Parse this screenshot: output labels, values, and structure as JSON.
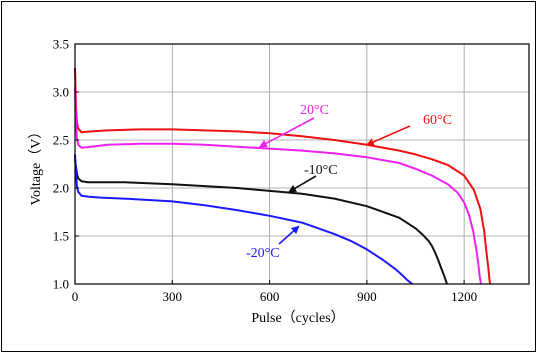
{
  "chart_data": {
    "type": "line",
    "xlabel": "Pulse（cycles）",
    "ylabel": "Voltage（V）",
    "xlim": [
      0,
      1400
    ],
    "ylim": [
      1.0,
      3.5
    ],
    "xticks": [
      0,
      300,
      600,
      900,
      1200
    ],
    "yticks": [
      1.0,
      1.5,
      2.0,
      2.5,
      3.0,
      3.5
    ],
    "xtick_labels": [
      "0",
      "300",
      "600",
      "900",
      "1200"
    ],
    "ytick_labels": [
      "1.0",
      "1.5",
      "2.0",
      "2.5",
      "3.0",
      "3.5"
    ],
    "grid": true,
    "legend": "none",
    "series": [
      {
        "name": "60°C",
        "color": "#ee1111",
        "x": [
          0,
          3,
          6,
          10,
          20,
          50,
          100,
          200,
          300,
          400,
          500,
          600,
          700,
          800,
          900,
          1000,
          1050,
          1100,
          1150,
          1200,
          1230,
          1250,
          1262,
          1270,
          1275,
          1278,
          1280
        ],
        "y": [
          3.25,
          2.85,
          2.68,
          2.62,
          2.58,
          2.59,
          2.6,
          2.61,
          2.61,
          2.6,
          2.59,
          2.57,
          2.54,
          2.5,
          2.45,
          2.39,
          2.35,
          2.3,
          2.24,
          2.13,
          1.98,
          1.78,
          1.55,
          1.3,
          1.15,
          1.05,
          1.0
        ]
      },
      {
        "name": "20°C",
        "color": "#ee22ee",
        "x": [
          0,
          3,
          6,
          10,
          20,
          50,
          100,
          200,
          300,
          400,
          500,
          600,
          700,
          800,
          900,
          1000,
          1050,
          1100,
          1150,
          1180,
          1200,
          1215,
          1228,
          1238,
          1244,
          1248,
          1252
        ],
        "y": [
          3.05,
          2.68,
          2.52,
          2.45,
          2.42,
          2.43,
          2.45,
          2.46,
          2.46,
          2.45,
          2.43,
          2.41,
          2.39,
          2.36,
          2.32,
          2.26,
          2.2,
          2.13,
          2.04,
          1.95,
          1.85,
          1.72,
          1.55,
          1.35,
          1.2,
          1.08,
          1.0
        ]
      },
      {
        "name": "-10°C",
        "color": "#111111",
        "x": [
          0,
          3,
          6,
          10,
          20,
          40,
          80,
          150,
          300,
          400,
          500,
          600,
          700,
          800,
          900,
          1000,
          1050,
          1070,
          1090,
          1100,
          1110,
          1120,
          1130,
          1140,
          1147
        ],
        "y": [
          2.3,
          2.22,
          2.15,
          2.1,
          2.07,
          2.06,
          2.06,
          2.06,
          2.04,
          2.02,
          2.0,
          1.97,
          1.94,
          1.89,
          1.81,
          1.69,
          1.58,
          1.52,
          1.45,
          1.4,
          1.33,
          1.25,
          1.16,
          1.07,
          1.0
        ]
      },
      {
        "name": "-20°C",
        "color": "#1a1aff",
        "x": [
          0,
          3,
          6,
          10,
          20,
          40,
          80,
          150,
          300,
          400,
          500,
          600,
          700,
          800,
          850,
          900,
          950,
          990,
          1010,
          1025,
          1040
        ],
        "y": [
          2.35,
          2.15,
          2.02,
          1.96,
          1.92,
          1.91,
          1.9,
          1.89,
          1.86,
          1.82,
          1.77,
          1.71,
          1.64,
          1.52,
          1.45,
          1.36,
          1.25,
          1.15,
          1.09,
          1.04,
          1.0
        ]
      }
    ],
    "annotations": [
      {
        "text": "60°C",
        "color": "#ee1111",
        "arrow_to": [
          900,
          2.45
        ]
      },
      {
        "text": "20°C",
        "color": "#ee22ee",
        "arrow_to": [
          570,
          2.43
        ]
      },
      {
        "text": "-10°C",
        "color": "#111111",
        "arrow_to": [
          660,
          1.96
        ]
      },
      {
        "text": "-20°C",
        "color": "#1a1aff",
        "arrow_to": [
          690,
          1.6
        ]
      }
    ]
  }
}
